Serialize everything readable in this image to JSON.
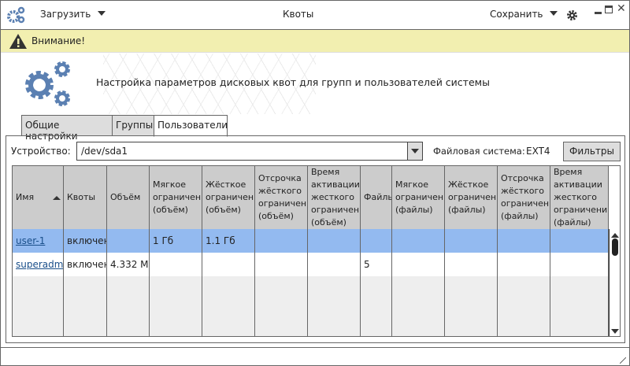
{
  "titlebar": {
    "title": "Квоты",
    "load_label": "Загрузить",
    "save_label": "Сохранить"
  },
  "warning": {
    "text": "Внимание!"
  },
  "header": {
    "description": "Настройка параметров дисковых квот для групп и пользователей системы"
  },
  "tabs": [
    {
      "label": "Общие настройки"
    },
    {
      "label": "Группы"
    },
    {
      "label": "Пользователи",
      "active": true
    }
  ],
  "device": {
    "label": "Устройство:",
    "value": "/dev/sda1",
    "fs_label": "Файловая система:",
    "fs_value": "EXT4",
    "filters_label": "Фильтры"
  },
  "table": {
    "sort": {
      "column": "Имя",
      "direction": "ascending"
    },
    "columns": [
      "Имя",
      "Квоты",
      "Объём",
      "Мягкое\nограничени\n(объём)",
      "Жёсткое\nограничени\n(объём)",
      "Отсрочка\nжёсткого\nограничени\n(объём)",
      "Время\nактивации\nжесткого\nограничени\n(объём)",
      "Файлы",
      "Мягкое\nограничени\n(файлы)",
      "Жёсткое\nограничени\n(файлы)",
      "Отсрочка\nжёсткого\nограничени\n(файлы)",
      "Время\nактивации\nжесткого\nограничени\n(файлы)"
    ],
    "rows": [
      [
        "user-1",
        "включен",
        "",
        "1 Гб",
        "1.1 Гб",
        "",
        "",
        "",
        "",
        "",
        "",
        ""
      ],
      [
        "superadm",
        "включен",
        "4.332 М",
        "",
        "",
        "",
        "",
        "5",
        "",
        "",
        "",
        ""
      ],
      [
        "",
        "",
        "",
        "",
        "",
        "",
        "",
        "",
        "",
        "",
        "",
        ""
      ],
      [
        "",
        "",
        "",
        "",
        "",
        "",
        "",
        "",
        "",
        "",
        "",
        ""
      ],
      [
        "",
        "",
        "",
        "",
        "",
        "",
        "",
        "",
        "",
        "",
        "",
        ""
      ]
    ],
    "selected_row": 0
  },
  "colors": {
    "accent": "#5b80b2",
    "selection": "#93baf0",
    "warning": "#f2efb0",
    "header": "#cccccc"
  }
}
